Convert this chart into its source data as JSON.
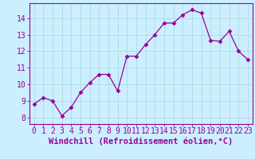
{
  "x": [
    0,
    1,
    2,
    3,
    4,
    5,
    6,
    7,
    8,
    9,
    10,
    11,
    12,
    13,
    14,
    15,
    16,
    17,
    18,
    19,
    20,
    21,
    22,
    23
  ],
  "y": [
    8.8,
    9.2,
    9.0,
    8.1,
    8.6,
    9.5,
    10.1,
    10.6,
    10.6,
    9.6,
    11.7,
    11.7,
    12.4,
    13.0,
    13.7,
    13.7,
    14.2,
    14.5,
    14.3,
    12.65,
    12.6,
    13.2,
    12.0,
    11.5
  ],
  "line_color": "#990099",
  "marker": "D",
  "marker_size": 2.5,
  "bg_color": "#cceeff",
  "grid_color": "#aadddd",
  "tick_color": "#990099",
  "label_color": "#990099",
  "xlabel": "Windchill (Refroidissement éolien,°C)",
  "ylabel_ticks": [
    8,
    9,
    10,
    11,
    12,
    13,
    14
  ],
  "xlim": [
    -0.5,
    23.5
  ],
  "ylim": [
    7.6,
    14.9
  ],
  "xticks": [
    0,
    1,
    2,
    3,
    4,
    5,
    6,
    7,
    8,
    9,
    10,
    11,
    12,
    13,
    14,
    15,
    16,
    17,
    18,
    19,
    20,
    21,
    22,
    23
  ],
  "font_size_xlabel": 7.5,
  "font_size_ticks": 7
}
